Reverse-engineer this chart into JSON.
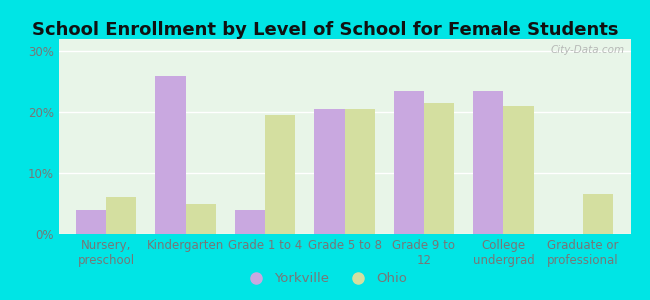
{
  "title": "School Enrollment by Level of School for Female Students",
  "categories": [
    "Nursery,\npreschool",
    "Kindergarten",
    "Grade 1 to 4",
    "Grade 5 to 8",
    "Grade 9 to\n12",
    "College\nundergrad",
    "Graduate or\nprofessional"
  ],
  "yorkville": [
    4.0,
    26.0,
    4.0,
    20.5,
    23.5,
    23.5,
    0.0
  ],
  "ohio": [
    6.0,
    5.0,
    19.5,
    20.5,
    21.5,
    21.0,
    6.5
  ],
  "yorkville_color": "#c9a8e0",
  "ohio_color": "#d4dfa0",
  "background_outer": "#00e5e5",
  "background_inner_color": "#e8f5e8",
  "ylabel_ticks": [
    "0%",
    "10%",
    "20%",
    "30%"
  ],
  "ytick_vals": [
    0,
    10,
    20,
    30
  ],
  "ylim": [
    0,
    32
  ],
  "bar_width": 0.38,
  "title_fontsize": 13,
  "tick_fontsize": 8.5,
  "legend_fontsize": 9.5,
  "gridcolor": "#e0e8d8",
  "watermark": "City-Data.com",
  "tick_color": "#777777"
}
